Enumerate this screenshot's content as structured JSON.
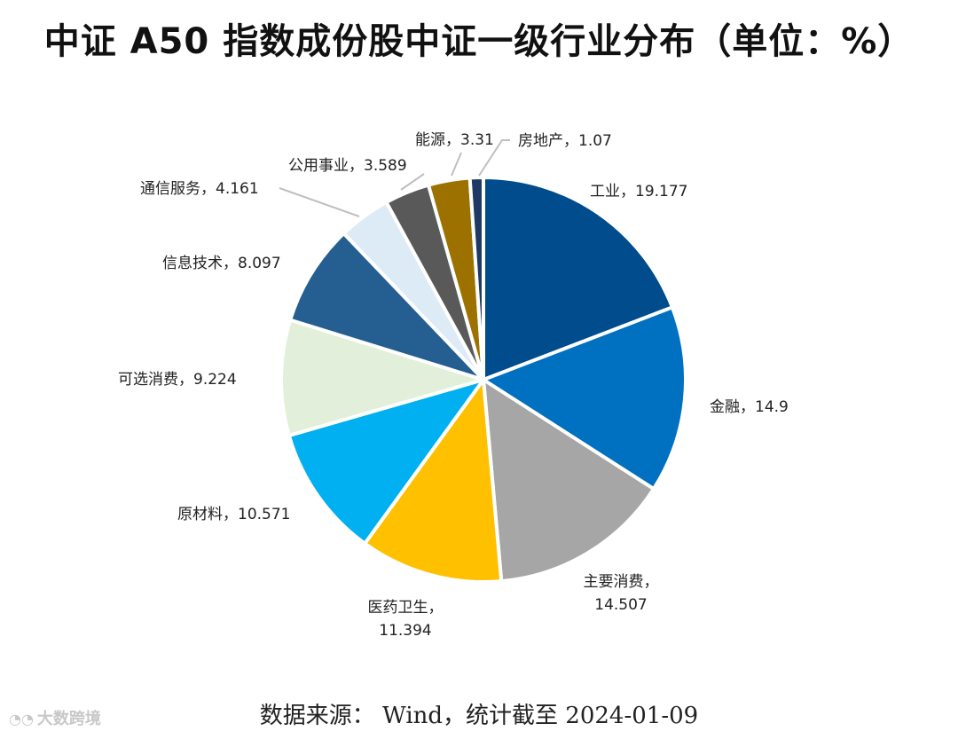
{
  "title": "中证 A50 指数成份股中证一级行业分布（单位：%）",
  "footer": "数据来源： Wind，统计截至 2024-01-09",
  "watermark": "大数跨境",
  "chart_data": {
    "type": "pie",
    "title": "中证 A50 指数成份股中证一级行业分布（单位：%）",
    "unit": "%",
    "slices": [
      {
        "label": "工业",
        "value": 19.177,
        "text": "工业，19.177",
        "color": "#004C8C"
      },
      {
        "label": "金融",
        "value": 14.9,
        "text": "金融，14.9",
        "color": "#0070C0"
      },
      {
        "label": "主要消费",
        "value": 14.507,
        "text": "主要消费，\n14.507",
        "color": "#A6A6A6"
      },
      {
        "label": "医药卫生",
        "value": 11.394,
        "text": "医药卫生，\n11.394",
        "color": "#FFC000"
      },
      {
        "label": "原材料",
        "value": 10.571,
        "text": "原材料，10.571",
        "color": "#00B0F0"
      },
      {
        "label": "可选消费",
        "value": 9.224,
        "text": "可选消费，9.224",
        "color": "#E2EFDA"
      },
      {
        "label": "信息技术",
        "value": 8.097,
        "text": "信息技术，8.097",
        "color": "#255E91"
      },
      {
        "label": "通信服务",
        "value": 4.161,
        "text": "通信服务，4.161",
        "color": "#DDEBF7"
      },
      {
        "label": "公用事业",
        "value": 3.589,
        "text": "公用事业，3.589",
        "color": "#595959"
      },
      {
        "label": "能源",
        "value": 3.31,
        "text": "能源，3.31",
        "color": "#9C7100"
      },
      {
        "label": "房地产",
        "value": 1.07,
        "text": "房地产，1.07",
        "color": "#1F3864"
      }
    ]
  }
}
